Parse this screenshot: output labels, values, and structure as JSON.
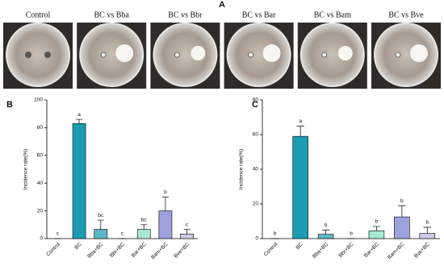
{
  "panel_a": {
    "label": "A",
    "images": [
      "Control",
      "BC vs Bba",
      "BC vs Bbr",
      "BC vs Bar",
      "BC vs Bam",
      "BC vs Bve"
    ]
  },
  "chart_data": [
    {
      "type": "bar",
      "panel_label": "B",
      "ylabel": "Incidence rate(%)",
      "categories": [
        "Control",
        "BC",
        "Bba+BC",
        "Bbr+BC",
        "Bar+BC",
        "Bam+BC",
        "Bve+BC"
      ],
      "values": [
        0,
        83,
        6.67,
        0,
        6.67,
        20,
        3.33
      ],
      "errors": [
        0,
        3,
        6.67,
        0,
        3.33,
        10,
        3.33
      ],
      "significance_labels": [
        "c",
        "a",
        "bc",
        "c",
        "bc",
        "b",
        "c"
      ],
      "colors": [
        "#1b9cb3",
        "#1b9cb3",
        "#5cb8c6",
        "#9ad7cf",
        "#a9e8d2",
        "#9ea2dc",
        "#cfcbe6"
      ],
      "ylim": [
        0,
        100
      ],
      "yticks": [
        0,
        20,
        40,
        60,
        80,
        100
      ]
    },
    {
      "type": "bar",
      "panel_label": "C",
      "ylabel": "Incidence rate(%)",
      "categories": [
        "Control",
        "BC",
        "Bba+BC",
        "Bbr+BC",
        "Bar+BC",
        "Bam+BC",
        "Bve+BC"
      ],
      "values": [
        0,
        59,
        2.5,
        0,
        4.5,
        12.5,
        3
      ],
      "errors": [
        0,
        6,
        2.5,
        0,
        2.5,
        6.5,
        3.5
      ],
      "significance_labels": [
        "b",
        "a",
        "b",
        "b",
        "b",
        "b",
        "b"
      ],
      "colors": [
        "#1b9cb3",
        "#1b9cb3",
        "#5cb8c6",
        "#9ad7cf",
        "#a9e8d2",
        "#9ea2dc",
        "#cfcbe6"
      ],
      "ylim": [
        0,
        80
      ],
      "yticks": [
        0,
        20,
        40,
        60,
        80
      ]
    }
  ]
}
